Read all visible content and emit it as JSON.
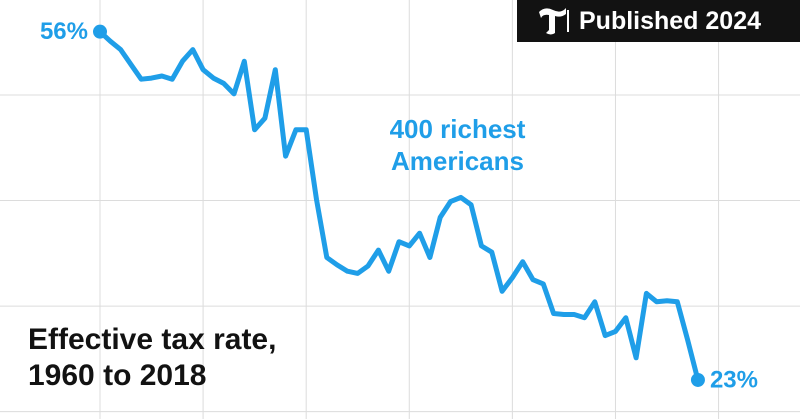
{
  "chart_data": {
    "type": "line",
    "title": "Effective tax rate, 1960 to 2018",
    "badge": "Published 2024",
    "x": [
      1960,
      1961,
      1962,
      1963,
      1964,
      1965,
      1966,
      1967,
      1968,
      1969,
      1970,
      1971,
      1972,
      1973,
      1974,
      1975,
      1976,
      1977,
      1978,
      1979,
      1980,
      1981,
      1982,
      1983,
      1984,
      1985,
      1986,
      1987,
      1988,
      1989,
      1990,
      1991,
      1992,
      1993,
      1994,
      1995,
      1996,
      1997,
      1998,
      1999,
      2000,
      2001,
      2002,
      2003,
      2004,
      2005,
      2006,
      2007,
      2008,
      2009,
      2010,
      2011,
      2012,
      2013,
      2014,
      2015,
      2016,
      2017,
      2018
    ],
    "series": [
      {
        "name": "400 richest Americans",
        "color": "#1f9ee8",
        "values": [
          56,
          55.1,
          54.3,
          52.9,
          51.5,
          51.6,
          51.8,
          51.5,
          53.2,
          54.3,
          52.4,
          51.6,
          51.1,
          50.1,
          53.2,
          46.7,
          47.8,
          52.4,
          44.2,
          46.7,
          46.7,
          40.1,
          34.6,
          33.9,
          33.3,
          33.1,
          33.8,
          35.3,
          33.3,
          36.1,
          35.7,
          36.9,
          34.6,
          38.4,
          39.9,
          40.3,
          39.6,
          35.7,
          35.1,
          31.4,
          32.7,
          34.2,
          32.5,
          32.1,
          29.3,
          29.2,
          29.2,
          28.9,
          30.4,
          27.2,
          27.6,
          28.9,
          25.1,
          31.2,
          30.4,
          30.5,
          30.4,
          26.8,
          23
        ],
        "value_labels": [
          "56%",
          null,
          null,
          null,
          null,
          null,
          null,
          null,
          null,
          null,
          null,
          null,
          null,
          null,
          null,
          null,
          null,
          null,
          null,
          null,
          null,
          null,
          null,
          null,
          null,
          null,
          null,
          null,
          null,
          null,
          null,
          null,
          null,
          null,
          null,
          null,
          null,
          null,
          null,
          null,
          null,
          null,
          null,
          null,
          null,
          null,
          null,
          null,
          null,
          null,
          null,
          null,
          null,
          null,
          null,
          null,
          null,
          null,
          "23%"
        ]
      }
    ],
    "xlim": [
      1950.3,
      2027.9
    ],
    "xticks": [
      1960,
      1970,
      1980,
      1990,
      2000,
      2010,
      2020
    ],
    "ylim": [
      19.3,
      59
    ],
    "yticks": [
      20,
      30,
      40,
      50
    ],
    "grid": true
  }
}
